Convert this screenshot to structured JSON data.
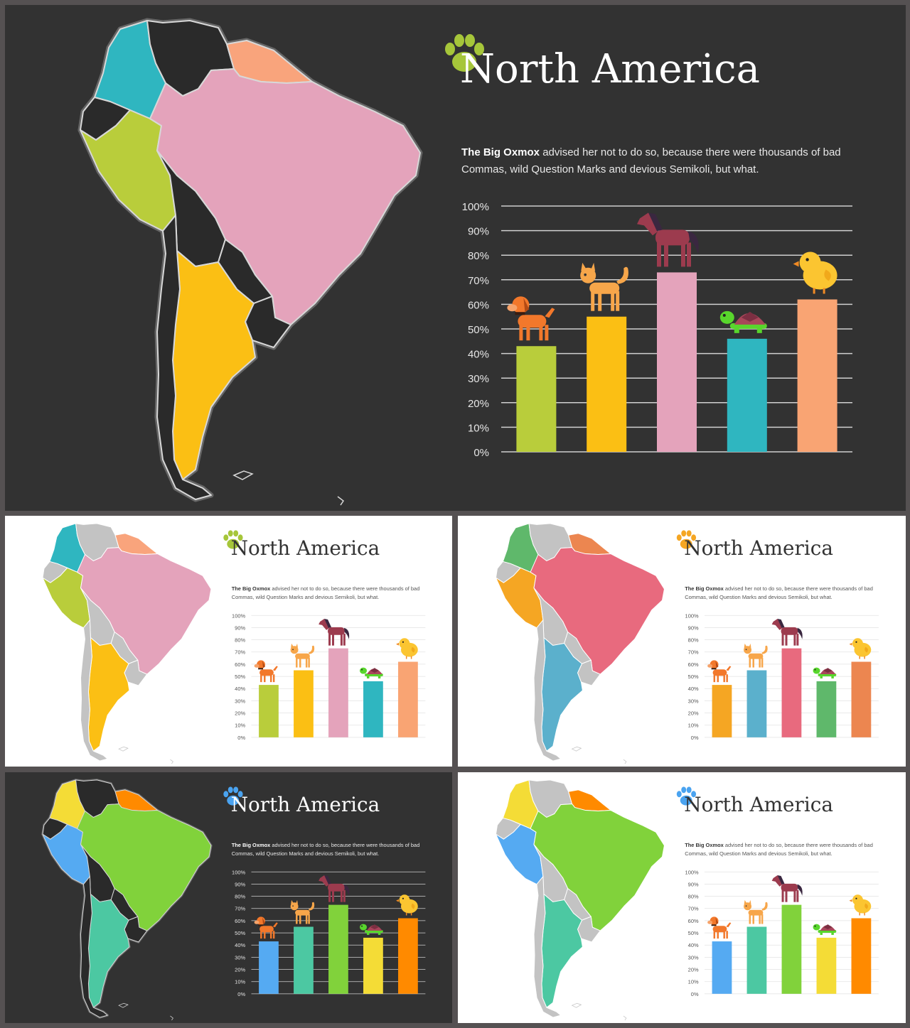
{
  "slides": [
    {
      "id": "hero",
      "theme": "dark",
      "title": "North America",
      "desc_bold": "The Big Oxmox",
      "desc_text": " advised her not to do so, because there were thousands of bad Commas, wild Question Marks and devious Semikoli, but what.",
      "paw_color": "#a6c63a",
      "map_colors": {
        "colombia": "#2fb6c0",
        "venezuela": "#2a2a2a",
        "guianas": "#f9a47c",
        "ecuador": "#2a2a2a",
        "peru": "#b9cd3b",
        "brazil": "#e4a3bb",
        "bolivia": "#2a2a2a",
        "paraguay": "#2a2a2a",
        "uruguay": "#2a2a2a",
        "argentina": "#fbbf14",
        "chile": "#2a2a2a"
      },
      "bar_colors": [
        "#b9cd3b",
        "#fbbf14",
        "#e4a3bb",
        "#2fb6c0",
        "#f9a473"
      ]
    },
    {
      "id": "light-1",
      "theme": "light",
      "title": "North America",
      "desc_bold": "The Big Oxmox",
      "desc_text": " advised her not to do so, because there were thousands of bad Commas, wild Question Marks and devious Semikoli, but what.",
      "paw_color": "#a6c63a",
      "map_colors": {
        "colombia": "#2fb6c0",
        "venezuela": "#c3c3c3",
        "guianas": "#f9a47c",
        "ecuador": "#c3c3c3",
        "peru": "#b9cd3b",
        "brazil": "#e4a3bb",
        "bolivia": "#c3c3c3",
        "paraguay": "#c3c3c3",
        "uruguay": "#c3c3c3",
        "argentina": "#fbbf14",
        "chile": "#c3c3c3"
      },
      "bar_colors": [
        "#b9cd3b",
        "#fbbf14",
        "#e4a3bb",
        "#2fb6c0",
        "#f9a473"
      ]
    },
    {
      "id": "light-2",
      "theme": "light",
      "title": "North America",
      "desc_bold": "The Big Oxmox",
      "desc_text": " advised her not to do so, because there were thousands of bad Commas, wild Question Marks and devious Semikoli, but what.",
      "paw_color": "#f5a623",
      "map_colors": {
        "colombia": "#5fb86b",
        "venezuela": "#c3c3c3",
        "guianas": "#ec8650",
        "ecuador": "#c3c3c3",
        "peru": "#f5a623",
        "brazil": "#e86a7e",
        "bolivia": "#c3c3c3",
        "paraguay": "#c3c3c3",
        "uruguay": "#c3c3c3",
        "argentina": "#5bb0cc",
        "chile": "#c3c3c3"
      },
      "bar_colors": [
        "#f5a623",
        "#5bb0cc",
        "#e86a7e",
        "#5fb86b",
        "#ec8650"
      ]
    },
    {
      "id": "dark-2",
      "theme": "dark",
      "title": "North America",
      "desc_bold": "The Big Oxmox",
      "desc_text": " advised her not to do so, because there were thousands of bad Commas, wild Question Marks and devious Semikoli, but what.",
      "paw_color": "#4aa3f0",
      "map_colors": {
        "colombia": "#f4dc36",
        "venezuela": "#2a2a2a",
        "guianas": "#ff8a00",
        "ecuador": "#2a2a2a",
        "peru": "#55aaf2",
        "brazil": "#81d23b",
        "bolivia": "#2a2a2a",
        "paraguay": "#2a2a2a",
        "uruguay": "#2a2a2a",
        "argentina": "#4cc8a2",
        "chile": "#2a2a2a"
      },
      "bar_colors": [
        "#55aaf2",
        "#4cc8a2",
        "#81d23b",
        "#f4dc36",
        "#ff8a00"
      ]
    },
    {
      "id": "light-3",
      "theme": "light",
      "title": "North America",
      "desc_bold": "The Big Oxmox",
      "desc_text": " advised her not to do so, because there were thousands of bad Commas, wild Question Marks and devious Semikoli, but what.",
      "paw_color": "#4aa3f0",
      "map_colors": {
        "colombia": "#f4dc36",
        "venezuela": "#c3c3c3",
        "guianas": "#ff8a00",
        "ecuador": "#c3c3c3",
        "peru": "#55aaf2",
        "brazil": "#81d23b",
        "bolivia": "#c3c3c3",
        "paraguay": "#c3c3c3",
        "uruguay": "#c3c3c3",
        "argentina": "#4cc8a2",
        "chile": "#c3c3c3"
      },
      "bar_colors": [
        "#55aaf2",
        "#4cc8a2",
        "#81d23b",
        "#f4dc36",
        "#ff8a00"
      ]
    }
  ],
  "chart_data": {
    "type": "bar",
    "categories": [
      "dog",
      "cat",
      "horse",
      "turtle",
      "chick"
    ],
    "values": [
      43,
      55,
      73,
      46,
      62
    ],
    "tick_labels": [
      "0%",
      "10%",
      "20%",
      "30%",
      "40%",
      "50%",
      "60%",
      "70%",
      "80%",
      "90%",
      "100%"
    ],
    "ylim": [
      0,
      100
    ],
    "grid": true,
    "icons": [
      "dog-icon",
      "cat-icon",
      "horse-icon",
      "turtle-icon",
      "chick-icon"
    ]
  }
}
